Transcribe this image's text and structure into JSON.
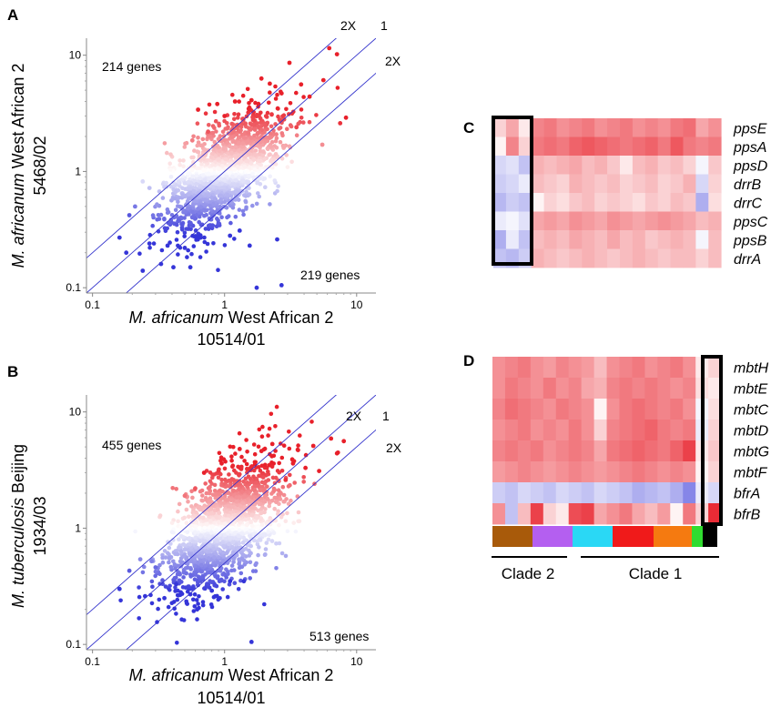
{
  "panels": {
    "A": {
      "letter": "A",
      "xlabel_italic": "M. africanum",
      "xlabel_rest": "West African 2",
      "xlabel_line2": "10514/01",
      "ylabel_italic": "M. africanum",
      "ylabel_rest": "West African 2",
      "ylabel_line2": "5468/02",
      "annotation_upper": "214 genes",
      "annotation_lower": "219 genes",
      "line_labels": [
        "2X",
        "1",
        "2X"
      ]
    },
    "B": {
      "letter": "B",
      "xlabel_italic": "M. africanum",
      "xlabel_rest": "West African 2",
      "xlabel_line2": "10514/01",
      "ylabel_italic": "M. tuberculosis",
      "ylabel_rest": "Beijing",
      "ylabel_line2": "1934/03",
      "annotation_upper": "455 genes",
      "annotation_lower": "513 genes",
      "line_labels": [
        "2X",
        "1",
        "2X"
      ]
    },
    "C": {
      "letter": "C",
      "genes": [
        "ppsE",
        "ppsA",
        "ppsD",
        "drrB",
        "drrC",
        "ppsC",
        "ppsB",
        "drrA"
      ]
    },
    "D": {
      "letter": "D",
      "genes": [
        "mbtH",
        "mbtE",
        "mbtC",
        "mbtD",
        "mbtG",
        "mbtF",
        "bfrA",
        "bfrB"
      ],
      "clade_labels": [
        "Clade 2",
        "Clade 1"
      ]
    }
  },
  "colors": {
    "high": "#e8202a",
    "low": "#3535d8",
    "mid": "#ffffff",
    "fit_lines": "#3333cc",
    "clade_bar": [
      "#a85a0a",
      "#b45ff0",
      "#2ad8f5",
      "#f01a1a",
      "#f57a10",
      "#30dc30",
      "#000000"
    ]
  },
  "chart_data": [
    {
      "type": "scatter",
      "panel": "A",
      "xlabel": "M. africanum West African 2 10514/01",
      "ylabel": "M. africanum West African 2 5468/02",
      "xscale": "log",
      "yscale": "log",
      "xlim": [
        0.09,
        14
      ],
      "ylim": [
        0.09,
        14
      ],
      "xticks": [
        0.1,
        1,
        10
      ],
      "yticks": [
        0.1,
        1,
        10
      ],
      "tick_labels": [
        "0.1",
        "1",
        "10"
      ],
      "reference_lines": [
        {
          "label": "2X",
          "ratio": 2
        },
        {
          "label": "1",
          "ratio": 1
        },
        {
          "label": "2X",
          "ratio": 0.5
        }
      ],
      "points": [
        [
          6.2,
          11.5
        ],
        [
          7.1,
          10.2
        ],
        [
          3.1,
          8.6
        ],
        [
          2.2,
          5.7
        ],
        [
          1.6,
          4.1
        ],
        [
          2.7,
          4.7
        ],
        [
          1.9,
          6.3
        ],
        [
          3.8,
          5.6
        ],
        [
          4.4,
          4.4
        ],
        [
          5.6,
          6.1
        ],
        [
          0.75,
          2.2
        ],
        [
          0.57,
          1.85
        ],
        [
          0.63,
          3.4
        ],
        [
          1.0,
          3.0
        ],
        [
          0.88,
          3.8
        ],
        [
          1.2,
          4.0
        ],
        [
          0.27,
          0.72
        ],
        [
          0.21,
          0.5
        ],
        [
          0.24,
          0.82
        ],
        [
          0.19,
          0.42
        ],
        [
          0.16,
          0.27
        ],
        [
          0.18,
          0.2
        ],
        [
          0.24,
          0.14
        ],
        [
          0.33,
          0.16
        ],
        [
          0.27,
          0.24
        ],
        [
          0.41,
          0.15
        ],
        [
          0.37,
          0.23
        ],
        [
          0.55,
          0.15
        ],
        [
          0.66,
          0.27
        ],
        [
          0.5,
          0.22
        ],
        [
          1.1,
          0.28
        ],
        [
          1.3,
          0.31
        ],
        [
          1.55,
          0.23
        ],
        [
          1.75,
          0.1
        ],
        [
          2.5,
          0.26
        ],
        [
          2.7,
          0.105
        ],
        [
          5.5,
          1.7
        ],
        [
          7.5,
          2.6
        ],
        [
          8.3,
          2.9
        ],
        [
          3.5,
          2.4
        ]
      ],
      "gene_count_upper": 214,
      "gene_count_lower": 219
    },
    {
      "type": "scatter",
      "panel": "B",
      "xlabel": "M. africanum West African 2 10514/01",
      "ylabel": "M. tuberculosis Beijing 1934/03",
      "xscale": "log",
      "yscale": "log",
      "xlim": [
        0.09,
        14
      ],
      "ylim": [
        0.09,
        14
      ],
      "xticks": [
        0.1,
        1,
        10
      ],
      "yticks": [
        0.1,
        1,
        10
      ],
      "tick_labels": [
        "0.1",
        "1",
        "10"
      ],
      "reference_lines": [
        {
          "label": "2X",
          "ratio": 2
        },
        {
          "label": "1",
          "ratio": 1
        },
        {
          "label": "2X",
          "ratio": 0.5
        }
      ],
      "points": [
        [
          8.0,
          5.6
        ],
        [
          6.4,
          5.9
        ],
        [
          4.7,
          5.1
        ],
        [
          2.3,
          5.3
        ],
        [
          1.3,
          4.8
        ],
        [
          1.9,
          4.6
        ],
        [
          3.6,
          4.7
        ],
        [
          0.95,
          3.6
        ],
        [
          0.7,
          3.0
        ],
        [
          0.6,
          2.2
        ],
        [
          0.5,
          1.9
        ],
        [
          0.23,
          0.54
        ],
        [
          0.19,
          0.43
        ],
        [
          0.16,
          0.3
        ],
        [
          0.25,
          0.26
        ],
        [
          0.3,
          0.46
        ],
        [
          0.43,
          0.33
        ],
        [
          0.62,
          0.2
        ],
        [
          1.6,
          0.105
        ],
        [
          0.8,
          0.29
        ],
        [
          1.4,
          0.35
        ],
        [
          0.35,
          0.25
        ],
        [
          0.55,
          0.27
        ],
        [
          5.2,
          3.1
        ],
        [
          2.9,
          2.6
        ],
        [
          7.1,
          4.4
        ],
        [
          3.3,
          3.6
        ],
        [
          4.1,
          3.3
        ],
        [
          1.1,
          0.35
        ],
        [
          0.28,
          0.52
        ]
      ],
      "gene_count_upper": 455,
      "gene_count_lower": 513
    },
    {
      "type": "heatmap",
      "panel": "C",
      "rows": [
        "ppsE",
        "ppsA",
        "ppsD",
        "drrB",
        "drrC",
        "ppsC",
        "ppsB",
        "drrA"
      ],
      "columns": 18,
      "values": [
        [
          0.2,
          0.4,
          0.1,
          0.55,
          0.6,
          0.5,
          0.55,
          0.6,
          0.5,
          0.55,
          0.6,
          0.5,
          0.55,
          0.5,
          0.6,
          0.65,
          0.4,
          0.5
        ],
        [
          0.05,
          0.55,
          0.2,
          0.6,
          0.65,
          0.6,
          0.7,
          0.75,
          0.7,
          0.65,
          0.6,
          0.65,
          0.7,
          0.6,
          0.75,
          0.6,
          0.55,
          0.6
        ],
        [
          -0.2,
          -0.15,
          -0.3,
          0.35,
          0.3,
          0.35,
          0.4,
          0.3,
          0.35,
          0.25,
          0.1,
          0.3,
          0.35,
          0.25,
          0.3,
          0.2,
          -0.05,
          0.25
        ],
        [
          -0.25,
          -0.2,
          -0.1,
          0.3,
          0.25,
          0.2,
          0.35,
          0.3,
          0.25,
          0.3,
          0.2,
          0.25,
          0.3,
          0.2,
          0.25,
          0.35,
          -0.2,
          0.2
        ],
        [
          -0.35,
          -0.25,
          -0.3,
          0.05,
          0.2,
          0.15,
          0.25,
          0.3,
          0.2,
          0.25,
          0.2,
          0.15,
          0.25,
          0.2,
          0.3,
          0.25,
          -0.4,
          0.15
        ],
        [
          -0.1,
          -0.05,
          -0.15,
          0.4,
          0.45,
          0.4,
          0.5,
          0.45,
          0.4,
          0.5,
          0.45,
          0.4,
          0.45,
          0.5,
          0.45,
          0.4,
          0.3,
          0.35
        ],
        [
          -0.4,
          -0.1,
          -0.3,
          0.3,
          0.35,
          0.3,
          0.4,
          0.35,
          0.3,
          0.4,
          0.3,
          0.35,
          0.25,
          0.3,
          0.35,
          0.3,
          -0.05,
          0.3
        ],
        [
          -0.3,
          -0.35,
          -0.25,
          0.35,
          0.3,
          0.25,
          0.3,
          0.35,
          0.3,
          0.25,
          0.3,
          0.35,
          0.3,
          0.25,
          0.3,
          0.3,
          0.2,
          0.3
        ]
      ]
    },
    {
      "type": "heatmap",
      "panel": "D",
      "rows": [
        "mbtH",
        "mbtE",
        "mbtC",
        "mbtD",
        "mbtG",
        "mbtF",
        "bfrA",
        "bfrB"
      ],
      "columns": 18,
      "values": [
        [
          0.5,
          0.55,
          0.6,
          0.5,
          0.45,
          0.55,
          0.5,
          0.45,
          0.3,
          0.5,
          0.55,
          0.6,
          0.5,
          0.55,
          0.6,
          0.5,
          0.1,
          0.2
        ],
        [
          0.5,
          0.6,
          0.55,
          0.5,
          0.6,
          0.5,
          0.55,
          0.4,
          0.35,
          0.55,
          0.6,
          0.55,
          0.6,
          0.55,
          0.5,
          0.55,
          0.15,
          0.1
        ],
        [
          0.55,
          0.65,
          0.6,
          0.55,
          0.5,
          0.6,
          0.55,
          0.5,
          0.05,
          0.5,
          0.6,
          0.65,
          0.6,
          0.55,
          0.6,
          0.5,
          -0.05,
          0.15
        ],
        [
          0.5,
          0.55,
          0.6,
          0.5,
          0.55,
          0.5,
          0.6,
          0.5,
          0.2,
          0.55,
          0.6,
          0.65,
          0.7,
          0.6,
          0.55,
          0.6,
          -0.1,
          0.2
        ],
        [
          0.55,
          0.6,
          0.55,
          0.6,
          0.5,
          0.55,
          0.6,
          0.55,
          0.4,
          0.6,
          0.65,
          0.7,
          0.65,
          0.6,
          0.7,
          0.85,
          0.1,
          0.25
        ],
        [
          0.45,
          0.5,
          0.55,
          0.5,
          0.45,
          0.5,
          0.55,
          0.5,
          0.45,
          0.5,
          0.55,
          0.6,
          0.55,
          0.5,
          0.55,
          0.5,
          0.05,
          0.2
        ],
        [
          -0.25,
          -0.3,
          -0.2,
          -0.25,
          -0.3,
          -0.2,
          -0.25,
          -0.3,
          -0.2,
          -0.25,
          -0.3,
          -0.4,
          -0.35,
          -0.3,
          -0.4,
          -0.6,
          -0.1,
          -0.2
        ],
        [
          0.5,
          -0.3,
          0.3,
          0.85,
          0.2,
          0.1,
          0.8,
          0.85,
          0.4,
          0.5,
          0.6,
          0.4,
          0.3,
          0.45,
          0.05,
          0.6,
          0.2,
          0.95
        ]
      ],
      "clade_groups": [
        {
          "label": "Clade 2",
          "columns": [
            0,
            5
          ]
        },
        {
          "label": "Clade 1",
          "columns": [
            6,
            17
          ]
        }
      ]
    }
  ]
}
